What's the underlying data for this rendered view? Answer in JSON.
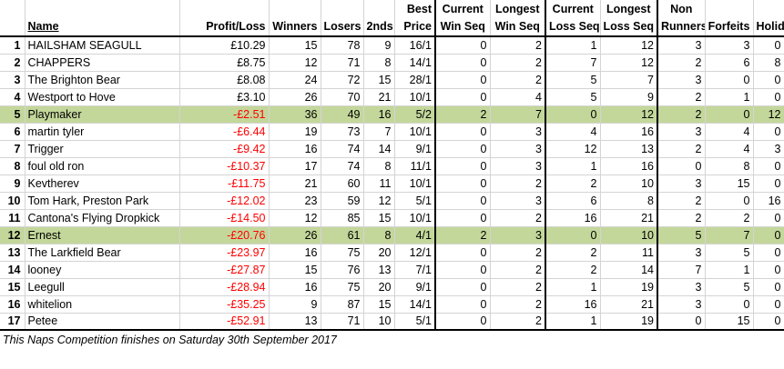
{
  "headers": {
    "rank": "",
    "name": "Name",
    "profit_loss": "Profit/Loss",
    "winners": "Winners",
    "losers": "Losers",
    "seconds": "2nds",
    "best_price": [
      "Best",
      "Price"
    ],
    "current_win_seq": [
      "Current",
      "Win Seq"
    ],
    "longest_win_seq": [
      "Longest",
      "Win Seq"
    ],
    "current_loss_seq": [
      "Current",
      "Loss Seq"
    ],
    "longest_loss_seq": [
      "Longest",
      "Loss Seq"
    ],
    "non_runners": [
      "Non",
      "Runners"
    ],
    "forfeits": "Forfeits",
    "holiday": "Holiday"
  },
  "rows": [
    {
      "rank": "1",
      "name": "HAILSHAM SEAGULL",
      "pl": "£10.29",
      "w": "15",
      "l": "78",
      "s": "9",
      "bp": "16/1",
      "cws": "0",
      "lws": "2",
      "cls": "1",
      "lls": "12",
      "nr": "3",
      "f": "3",
      "h": "0",
      "neg": false,
      "hl": false
    },
    {
      "rank": "2",
      "name": "CHAPPERS",
      "pl": "£8.75",
      "w": "12",
      "l": "71",
      "s": "8",
      "bp": "14/1",
      "cws": "0",
      "lws": "2",
      "cls": "7",
      "lls": "12",
      "nr": "2",
      "f": "6",
      "h": "8",
      "neg": false,
      "hl": false
    },
    {
      "rank": "3",
      "name": "The Brighton Bear",
      "pl": "£8.08",
      "w": "24",
      "l": "72",
      "s": "15",
      "bp": "28/1",
      "cws": "0",
      "lws": "2",
      "cls": "5",
      "lls": "7",
      "nr": "3",
      "f": "0",
      "h": "0",
      "neg": false,
      "hl": false
    },
    {
      "rank": "4",
      "name": "Westport to Hove",
      "pl": "£3.10",
      "w": "26",
      "l": "70",
      "s": "21",
      "bp": "10/1",
      "cws": "0",
      "lws": "4",
      "cls": "5",
      "lls": "9",
      "nr": "2",
      "f": "1",
      "h": "0",
      "neg": false,
      "hl": false
    },
    {
      "rank": "5",
      "name": "Playmaker",
      "pl": "-£2.51",
      "w": "36",
      "l": "49",
      "s": "16",
      "bp": "5/2",
      "cws": "2",
      "lws": "7",
      "cls": "0",
      "lls": "12",
      "nr": "2",
      "f": "0",
      "h": "12",
      "neg": true,
      "hl": true
    },
    {
      "rank": "6",
      "name": "martin tyler",
      "pl": "-£6.44",
      "w": "19",
      "l": "73",
      "s": "7",
      "bp": "10/1",
      "cws": "0",
      "lws": "3",
      "cls": "4",
      "lls": "16",
      "nr": "3",
      "f": "4",
      "h": "0",
      "neg": true,
      "hl": false
    },
    {
      "rank": "7",
      "name": "Trigger",
      "pl": "-£9.42",
      "w": "16",
      "l": "74",
      "s": "14",
      "bp": "9/1",
      "cws": "0",
      "lws": "3",
      "cls": "12",
      "lls": "13",
      "nr": "2",
      "f": "4",
      "h": "3",
      "neg": true,
      "hl": false
    },
    {
      "rank": "8",
      "name": "foul old ron",
      "pl": "-£10.37",
      "w": "17",
      "l": "74",
      "s": "8",
      "bp": "11/1",
      "cws": "0",
      "lws": "3",
      "cls": "1",
      "lls": "16",
      "nr": "0",
      "f": "8",
      "h": "0",
      "neg": true,
      "hl": false
    },
    {
      "rank": "9",
      "name": "Kevtherev",
      "pl": "-£11.75",
      "w": "21",
      "l": "60",
      "s": "11",
      "bp": "10/1",
      "cws": "0",
      "lws": "2",
      "cls": "2",
      "lls": "10",
      "nr": "3",
      "f": "15",
      "h": "0",
      "neg": true,
      "hl": false
    },
    {
      "rank": "10",
      "name": "Tom Hark, Preston Park",
      "pl": "-£12.02",
      "w": "23",
      "l": "59",
      "s": "12",
      "bp": "5/1",
      "cws": "0",
      "lws": "3",
      "cls": "6",
      "lls": "8",
      "nr": "2",
      "f": "0",
      "h": "16",
      "neg": true,
      "hl": false
    },
    {
      "rank": "11",
      "name": "Cantona's Flying Dropkick",
      "pl": "-£14.50",
      "w": "12",
      "l": "85",
      "s": "15",
      "bp": "10/1",
      "cws": "0",
      "lws": "2",
      "cls": "16",
      "lls": "21",
      "nr": "2",
      "f": "2",
      "h": "0",
      "neg": true,
      "hl": false
    },
    {
      "rank": "12",
      "name": "Ernest",
      "pl": "-£20.76",
      "w": "26",
      "l": "61",
      "s": "8",
      "bp": "4/1",
      "cws": "2",
      "lws": "3",
      "cls": "0",
      "lls": "10",
      "nr": "5",
      "f": "7",
      "h": "0",
      "neg": true,
      "hl": true
    },
    {
      "rank": "13",
      "name": "The Larkfield Bear",
      "pl": "-£23.97",
      "w": "16",
      "l": "75",
      "s": "20",
      "bp": "12/1",
      "cws": "0",
      "lws": "2",
      "cls": "2",
      "lls": "11",
      "nr": "3",
      "f": "5",
      "h": "0",
      "neg": true,
      "hl": false
    },
    {
      "rank": "14",
      "name": "looney",
      "pl": "-£27.87",
      "w": "15",
      "l": "76",
      "s": "13",
      "bp": "7/1",
      "cws": "0",
      "lws": "2",
      "cls": "2",
      "lls": "14",
      "nr": "7",
      "f": "1",
      "h": "0",
      "neg": true,
      "hl": false
    },
    {
      "rank": "15",
      "name": "Leegull",
      "pl": "-£28.94",
      "w": "16",
      "l": "75",
      "s": "20",
      "bp": "9/1",
      "cws": "0",
      "lws": "2",
      "cls": "1",
      "lls": "19",
      "nr": "3",
      "f": "5",
      "h": "0",
      "neg": true,
      "hl": false
    },
    {
      "rank": "16",
      "name": "whitelion",
      "pl": "-£35.25",
      "w": "9",
      "l": "87",
      "s": "15",
      "bp": "14/1",
      "cws": "0",
      "lws": "2",
      "cls": "16",
      "lls": "21",
      "nr": "3",
      "f": "0",
      "h": "0",
      "neg": true,
      "hl": false
    },
    {
      "rank": "17",
      "name": "Petee",
      "pl": "-£52.91",
      "w": "13",
      "l": "71",
      "s": "10",
      "bp": "5/1",
      "cws": "0",
      "lws": "2",
      "cls": "1",
      "lls": "19",
      "nr": "0",
      "f": "15",
      "h": "0",
      "neg": true,
      "hl": false
    }
  ],
  "footer": "This Naps Competition finishes on Saturday 30th September 2017",
  "colors": {
    "highlight": "#c4d79b",
    "negative": "#ff0000"
  }
}
